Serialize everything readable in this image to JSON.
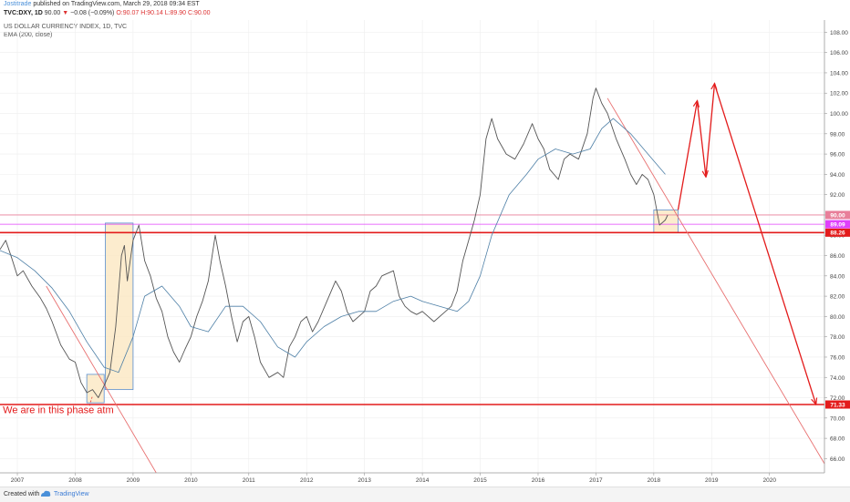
{
  "header": {
    "publisher": "Jostitrade",
    "published_text": "published on TradingView.com, March 29, 2018 09:34 EST",
    "symbol": "TVC:DXY, 1D",
    "last": "90.00",
    "change": "−0.08 (−0.09%)",
    "open": "O:90.07",
    "high": "H:90.14",
    "low": "L:89.90",
    "close": "C:90.00",
    "series_title": "US DOLLAR CURRENCY INDEX, 1D, TVC",
    "indicator_title": "EMA (200, close)"
  },
  "footer": {
    "created_with": "Created with",
    "brand": "TradingView"
  },
  "colors": {
    "price": "#555555",
    "ema": "#4d7fa6",
    "support": "#e31b1b",
    "projection": "#e31b1b",
    "trendline": "#e87070",
    "box_fill": "#fbe6bd",
    "box_stroke": "#5a8fd0",
    "hline_pink": "#e87f9a",
    "label_red": "#e31b1b",
    "label_magenta": "#e040fb"
  },
  "chart_data": {
    "type": "line",
    "title": "US DOLLAR CURRENCY INDEX, 1D, TVC",
    "xlim": [
      2006.7,
      2020.95
    ],
    "ylim": [
      64.6,
      109.2
    ],
    "x_ticks": [
      "2007",
      "2008",
      "2009",
      "2010",
      "2011",
      "2012",
      "2013",
      "2014",
      "2015",
      "2016",
      "2017",
      "2018",
      "2019",
      "2020"
    ],
    "y_ticks": [
      66,
      68,
      70,
      72,
      74,
      76,
      78,
      80,
      82,
      84,
      86,
      88,
      90,
      92,
      94,
      96,
      98,
      100,
      102,
      104,
      106,
      108
    ],
    "series": [
      {
        "name": "DXY",
        "x": [
          2006.7,
          2006.8,
          2006.9,
          2007.0,
          2007.1,
          2007.25,
          2007.4,
          2007.5,
          2007.6,
          2007.75,
          2007.9,
          2008.0,
          2008.1,
          2008.2,
          2008.3,
          2008.4,
          2008.5,
          2008.6,
          2008.7,
          2008.8,
          2008.85,
          2008.9,
          2009.0,
          2009.1,
          2009.2,
          2009.3,
          2009.4,
          2009.5,
          2009.6,
          2009.7,
          2009.8,
          2009.9,
          2010.0,
          2010.1,
          2010.2,
          2010.3,
          2010.42,
          2010.5,
          2010.6,
          2010.7,
          2010.8,
          2010.9,
          2011.0,
          2011.1,
          2011.2,
          2011.35,
          2011.5,
          2011.6,
          2011.7,
          2011.8,
          2011.9,
          2012.0,
          2012.1,
          2012.2,
          2012.35,
          2012.5,
          2012.6,
          2012.7,
          2012.8,
          2012.9,
          2013.0,
          2013.1,
          2013.2,
          2013.3,
          2013.5,
          2013.6,
          2013.7,
          2013.8,
          2013.9,
          2014.0,
          2014.2,
          2014.4,
          2014.5,
          2014.6,
          2014.7,
          2014.8,
          2014.9,
          2015.0,
          2015.1,
          2015.2,
          2015.3,
          2015.45,
          2015.6,
          2015.75,
          2015.9,
          2016.0,
          2016.1,
          2016.2,
          2016.35,
          2016.45,
          2016.55,
          2016.7,
          2016.85,
          2016.95,
          2017.0,
          2017.1,
          2017.2,
          2017.35,
          2017.5,
          2017.6,
          2017.7,
          2017.8,
          2017.9,
          2018.0,
          2018.1,
          2018.2,
          2018.24
        ],
        "values": [
          86.6,
          87.5,
          85.8,
          84.0,
          84.5,
          83.0,
          81.8,
          80.8,
          79.5,
          77.2,
          75.8,
          75.5,
          73.5,
          72.5,
          72.8,
          72.0,
          73.2,
          74.5,
          79.0,
          86.0,
          87.0,
          83.5,
          87.5,
          89.0,
          85.5,
          84.0,
          81.8,
          80.5,
          78.0,
          76.5,
          75.5,
          76.8,
          78.0,
          80.0,
          81.5,
          83.5,
          88.0,
          85.5,
          83.0,
          80.0,
          77.5,
          79.5,
          80.0,
          78.0,
          75.5,
          74.0,
          74.5,
          74.0,
          77.0,
          78.0,
          79.5,
          80.0,
          78.5,
          79.5,
          81.5,
          83.5,
          82.5,
          80.5,
          79.5,
          80.0,
          80.5,
          82.5,
          83.0,
          84.0,
          84.5,
          82.0,
          81.0,
          80.5,
          80.2,
          80.5,
          79.5,
          80.5,
          81.0,
          82.5,
          85.5,
          87.5,
          89.5,
          92.0,
          97.5,
          99.5,
          97.5,
          96.0,
          95.5,
          97.0,
          99.0,
          97.5,
          96.5,
          94.5,
          93.5,
          95.5,
          96.0,
          95.5,
          98.0,
          101.5,
          102.5,
          101.0,
          100.0,
          97.5,
          95.5,
          94.0,
          93.0,
          94.0,
          93.5,
          92.0,
          89.0,
          89.5,
          90.0
        ]
      },
      {
        "name": "EMA (200, close)",
        "x": [
          2006.7,
          2007.0,
          2007.3,
          2007.6,
          2007.9,
          2008.2,
          2008.5,
          2008.75,
          2009.0,
          2009.2,
          2009.5,
          2009.8,
          2010.0,
          2010.3,
          2010.6,
          2010.9,
          2011.2,
          2011.5,
          2011.8,
          2012.0,
          2012.3,
          2012.6,
          2012.9,
          2013.2,
          2013.5,
          2013.8,
          2014.0,
          2014.3,
          2014.6,
          2014.8,
          2015.0,
          2015.2,
          2015.5,
          2015.8,
          2016.0,
          2016.3,
          2016.6,
          2016.9,
          2017.1,
          2017.3,
          2017.6,
          2017.9,
          2018.2
        ],
        "values": [
          86.5,
          85.8,
          84.5,
          82.8,
          80.5,
          77.5,
          75.0,
          74.5,
          78.0,
          82.0,
          83.0,
          81.0,
          79.0,
          78.5,
          81.0,
          81.0,
          79.5,
          77.0,
          76.0,
          77.5,
          79.0,
          80.0,
          80.5,
          80.5,
          81.5,
          82.0,
          81.5,
          81.0,
          80.5,
          81.5,
          84.0,
          88.0,
          92.0,
          94.0,
          95.5,
          96.5,
          96.0,
          96.5,
          98.5,
          99.5,
          98.0,
          96.0,
          94.0
        ]
      }
    ],
    "annotations": [
      {
        "type": "hline",
        "y": 88.26,
        "label": "88.26",
        "color": "#e31b1b"
      },
      {
        "type": "hline",
        "y": 71.33,
        "label": "71.33",
        "color": "#e31b1b"
      },
      {
        "type": "hline",
        "y": 90.0,
        "label": "90.00",
        "color": "#e87f9a"
      },
      {
        "type": "hline",
        "y": 89.09,
        "label": "89.09",
        "color": "#e040fb"
      },
      {
        "type": "box",
        "x": [
          2008.2,
          2008.5
        ],
        "y": [
          71.5,
          74.3
        ]
      },
      {
        "type": "box",
        "x": [
          2008.52,
          2009.0
        ],
        "y": [
          72.8,
          89.2
        ]
      },
      {
        "type": "box",
        "x": [
          2018.0,
          2018.42
        ],
        "y": [
          88.3,
          90.5
        ]
      },
      {
        "type": "trendline",
        "x": [
          2007.5,
          2009.4
        ],
        "y": [
          83.0,
          64.6
        ]
      },
      {
        "type": "trendline",
        "x": [
          2017.2,
          2020.95
        ],
        "y": [
          101.5,
          65.5
        ]
      },
      {
        "type": "projection",
        "x": [
          2018.42,
          2018.75,
          2018.9,
          2019.05,
          2020.8
        ],
        "y": [
          90.5,
          101.2,
          93.8,
          102.9,
          71.4
        ]
      },
      {
        "type": "text",
        "x": 2006.75,
        "y": 70.5,
        "text": "We are in this phase atm",
        "color": "#e31b1b"
      }
    ]
  }
}
